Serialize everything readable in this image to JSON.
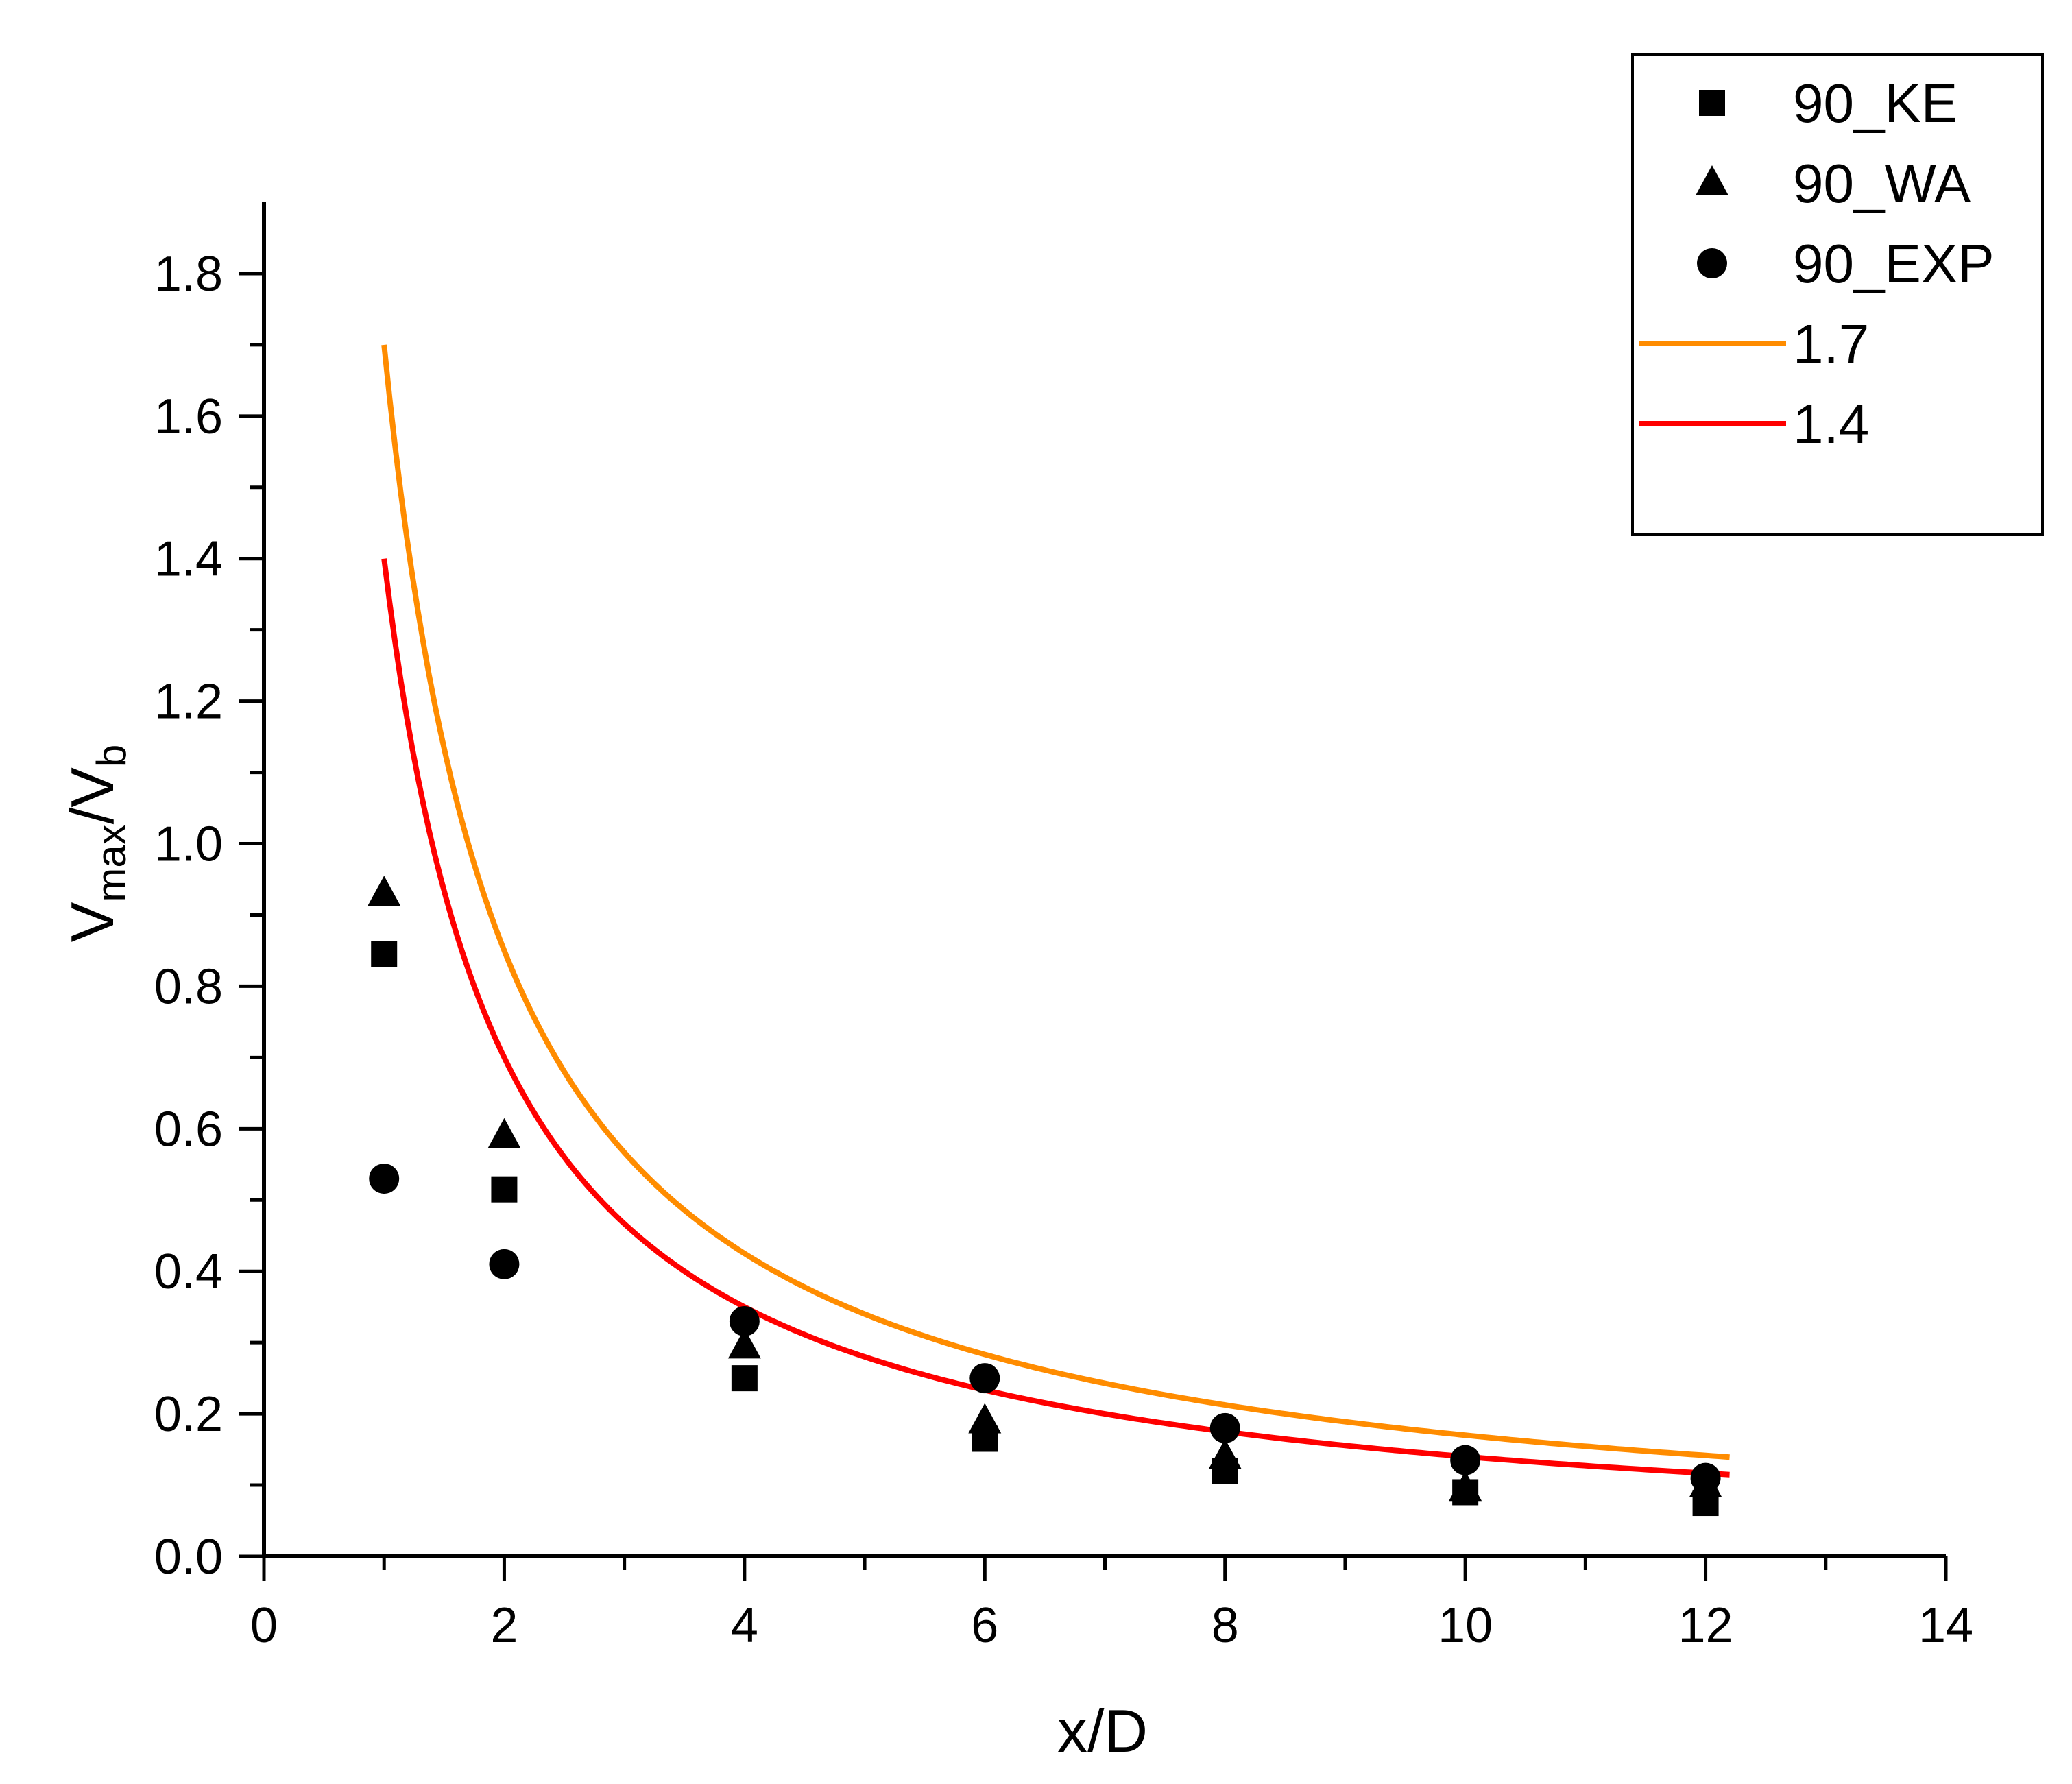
{
  "chart_data": {
    "type": "scatter",
    "title": "",
    "xlabel": "x/D",
    "ylabel": {
      "main": "V",
      "sub1": "max",
      "sep": "/V",
      "sub2": "b"
    },
    "xlim": [
      0,
      14
    ],
    "ylim": [
      0,
      1.9
    ],
    "x_ticks": [
      0,
      2,
      4,
      6,
      8,
      10,
      12,
      14
    ],
    "x_tick_labels": [
      "0",
      "2",
      "4",
      "6",
      "8",
      "10",
      "12",
      "14"
    ],
    "y_ticks": [
      0,
      0.2,
      0.4,
      0.6,
      0.8,
      1.0,
      1.2,
      1.4,
      1.6,
      1.8
    ],
    "y_tick_labels": [
      "0.0",
      "0.2",
      "0.4",
      "0.6",
      "0.8",
      "1.0",
      "1.2",
      "1.4",
      "1.6",
      "1.8"
    ],
    "grid": false,
    "legend_position": "top-right",
    "scatter_series": [
      {
        "name": "90_KE",
        "marker": "square",
        "x": [
          1,
          2,
          4,
          6,
          8,
          10,
          12
        ],
        "y": [
          0.845,
          0.515,
          0.25,
          0.165,
          0.12,
          0.09,
          0.075
        ]
      },
      {
        "name": "90_WA",
        "marker": "triangle",
        "x": [
          1,
          2,
          4,
          6,
          8,
          10,
          12
        ],
        "y": [
          0.93,
          0.59,
          0.295,
          0.19,
          0.14,
          0.095,
          0.1
        ]
      },
      {
        "name": "90_EXP",
        "marker": "circle",
        "x": [
          1,
          2,
          4,
          6,
          8,
          10,
          12
        ],
        "y": [
          0.53,
          0.41,
          0.33,
          0.25,
          0.18,
          0.135,
          0.11
        ]
      }
    ],
    "line_series": [
      {
        "name": "1.7",
        "color": "#FF8C00",
        "coefficient": 1.7,
        "x_range": [
          1,
          12.2
        ],
        "formula": "y = 1.7 / x"
      },
      {
        "name": "1.4",
        "color": "#FF0000",
        "coefficient": 1.4,
        "x_range": [
          1,
          12.2
        ],
        "formula": "y = 1.4 / x"
      }
    ],
    "colors": {
      "marker": "#000000",
      "axis": "#000000",
      "legend_border": "#000000"
    }
  }
}
